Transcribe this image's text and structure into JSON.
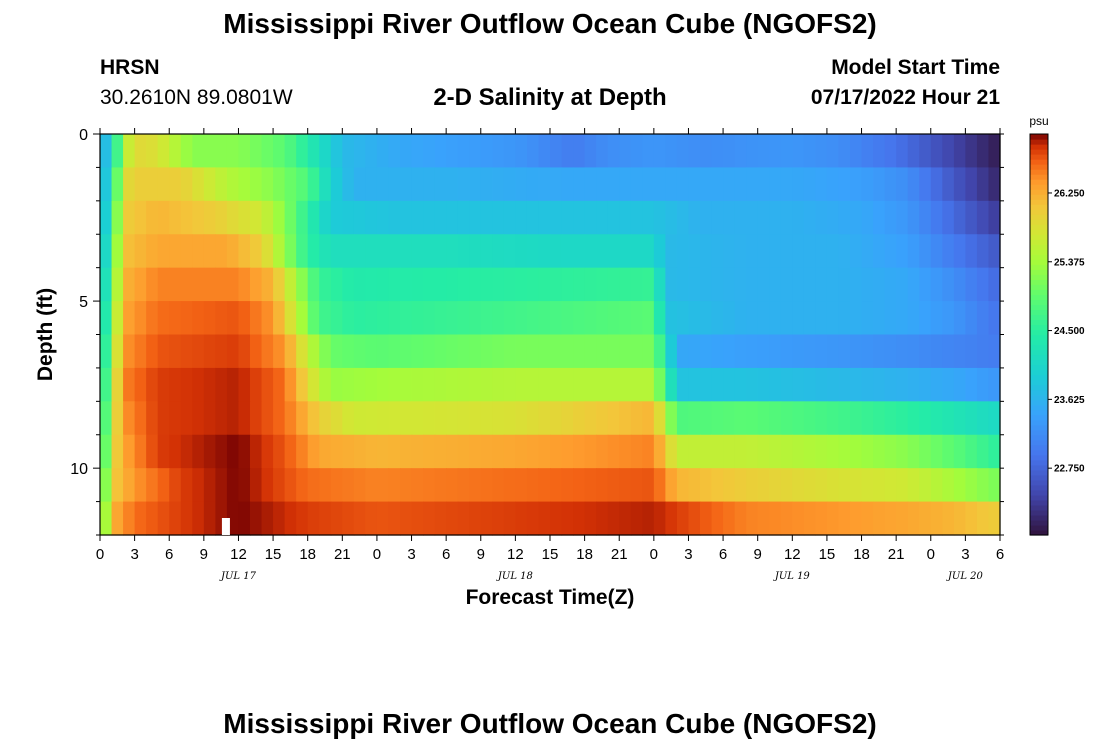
{
  "header": {
    "title": "Mississippi River Outflow Ocean Cube (NGOFS2)",
    "station": "HRSN",
    "coords": "30.2610N  89.0801W",
    "subtitle": "2-D Salinity at Depth",
    "model_start_label": "Model Start Time",
    "model_start_value": "07/17/2022 Hour 21"
  },
  "footer": {
    "title": "Mississippi River Outflow Ocean Cube (NGOFS2)"
  },
  "chart_data": {
    "type": "heatmap",
    "title": "2-D Salinity at Depth",
    "xlabel": "Forecast Time(Z)",
    "ylabel": "Depth (ft)",
    "x_range_hours": [
      0,
      78
    ],
    "y_range_ft": [
      0,
      12
    ],
    "x_tick_labels": [
      "0",
      "3",
      "6",
      "9",
      "12",
      "15",
      "18",
      "21",
      "0",
      "3",
      "6",
      "9",
      "12",
      "15",
      "18",
      "21",
      "0",
      "3",
      "6",
      "9",
      "12",
      "15",
      "18",
      "21",
      "0",
      "3",
      "6"
    ],
    "y_tick_labels": [
      "0",
      "5",
      "10"
    ],
    "y_tick_values": [
      0,
      5,
      10
    ],
    "date_labels": [
      {
        "label": "JUL 17",
        "hour": 12
      },
      {
        "label": "JUL 18",
        "hour": 36
      },
      {
        "label": "JUL 19",
        "hour": 60
      },
      {
        "label": "JUL 20",
        "hour": 75
      }
    ],
    "current_time_marker_hour": 11,
    "colorbar": {
      "unit": "psu",
      "min": 21.9,
      "max": 27.0,
      "ticks": [
        "26.250",
        "25.375",
        "24.500",
        "23.625",
        "22.750"
      ],
      "tick_values": [
        26.25,
        25.375,
        24.5,
        23.625,
        22.75
      ]
    },
    "layers": 12,
    "layer_depths_ft": [
      0.5,
      1.5,
      2.5,
      3.5,
      4.5,
      5.5,
      6.5,
      7.5,
      8.5,
      9.5,
      10.5,
      11.5
    ],
    "profiles": [
      {
        "depth_ft": 0.5,
        "samples": [
          [
            0,
            23.5
          ],
          [
            1,
            24.0
          ],
          [
            2,
            25.4
          ],
          [
            3,
            25.9
          ],
          [
            5,
            25.8
          ],
          [
            8,
            25.2
          ],
          [
            12,
            25.2
          ],
          [
            16,
            24.9
          ],
          [
            19,
            24.2
          ],
          [
            21,
            23.7
          ],
          [
            26,
            23.5
          ],
          [
            36,
            23.3
          ],
          [
            41,
            23.0
          ],
          [
            44,
            23.2
          ],
          [
            48,
            23.3
          ],
          [
            52,
            23.2
          ],
          [
            60,
            23.3
          ],
          [
            64,
            23.2
          ],
          [
            69,
            22.9
          ],
          [
            74,
            22.4
          ],
          [
            78,
            22.0
          ]
        ]
      },
      {
        "depth_ft": 1.5,
        "samples": [
          [
            0,
            23.5
          ],
          [
            1,
            24.2
          ],
          [
            2,
            25.8
          ],
          [
            3,
            26.0
          ],
          [
            7,
            26.0
          ],
          [
            11,
            25.5
          ],
          [
            15,
            25.2
          ],
          [
            18,
            24.8
          ],
          [
            20,
            24.0
          ],
          [
            22,
            23.6
          ],
          [
            30,
            23.6
          ],
          [
            40,
            23.5
          ],
          [
            48,
            23.5
          ],
          [
            52,
            23.5
          ],
          [
            60,
            23.5
          ],
          [
            66,
            23.4
          ],
          [
            70,
            23.2
          ],
          [
            74,
            22.6
          ],
          [
            78,
            22.1
          ]
        ]
      },
      {
        "depth_ft": 2.5,
        "samples": [
          [
            0,
            23.5
          ],
          [
            1,
            24.4
          ],
          [
            2,
            26.0
          ],
          [
            5,
            26.2
          ],
          [
            10,
            26.0
          ],
          [
            14,
            25.7
          ],
          [
            16,
            25.2
          ],
          [
            18,
            24.5
          ],
          [
            20,
            23.9
          ],
          [
            26,
            23.8
          ],
          [
            40,
            23.8
          ],
          [
            48,
            23.8
          ],
          [
            52,
            23.6
          ],
          [
            60,
            23.6
          ],
          [
            66,
            23.5
          ],
          [
            70,
            23.3
          ],
          [
            74,
            22.8
          ],
          [
            78,
            22.3
          ]
        ]
      },
      {
        "depth_ft": 3.5,
        "samples": [
          [
            0,
            23.6
          ],
          [
            1,
            24.6
          ],
          [
            2,
            26.1
          ],
          [
            5,
            26.3
          ],
          [
            11,
            26.3
          ],
          [
            14,
            26.0
          ],
          [
            16,
            25.3
          ],
          [
            18,
            24.5
          ],
          [
            20,
            24.2
          ],
          [
            30,
            24.2
          ],
          [
            40,
            24.1
          ],
          [
            48,
            24.1
          ],
          [
            49,
            23.7
          ],
          [
            56,
            23.6
          ],
          [
            64,
            23.6
          ],
          [
            70,
            23.4
          ],
          [
            74,
            23.0
          ],
          [
            78,
            22.6
          ]
        ]
      },
      {
        "depth_ft": 4.5,
        "samples": [
          [
            0,
            23.7
          ],
          [
            1,
            24.8
          ],
          [
            2,
            26.2
          ],
          [
            5,
            26.5
          ],
          [
            12,
            26.5
          ],
          [
            15,
            26.2
          ],
          [
            17,
            25.4
          ],
          [
            19,
            24.6
          ],
          [
            22,
            24.4
          ],
          [
            36,
            24.5
          ],
          [
            48,
            24.6
          ],
          [
            49,
            23.7
          ],
          [
            56,
            23.6
          ],
          [
            64,
            23.6
          ],
          [
            70,
            23.5
          ],
          [
            74,
            23.2
          ],
          [
            78,
            22.8
          ]
        ]
      },
      {
        "depth_ft": 5.5,
        "samples": [
          [
            0,
            23.8
          ],
          [
            1,
            25.0
          ],
          [
            2,
            26.3
          ],
          [
            5,
            26.6
          ],
          [
            12,
            26.7
          ],
          [
            15,
            26.4
          ],
          [
            17,
            25.6
          ],
          [
            19,
            24.7
          ],
          [
            22,
            24.5
          ],
          [
            36,
            24.7
          ],
          [
            48,
            24.9
          ],
          [
            49,
            23.8
          ],
          [
            56,
            23.6
          ],
          [
            64,
            23.6
          ],
          [
            70,
            23.5
          ],
          [
            74,
            23.3
          ],
          [
            78,
            22.9
          ]
        ]
      },
      {
        "depth_ft": 6.5,
        "samples": [
          [
            0,
            23.9
          ],
          [
            1,
            25.2
          ],
          [
            2,
            26.4
          ],
          [
            5,
            26.7
          ],
          [
            12,
            26.8
          ],
          [
            16,
            26.4
          ],
          [
            18,
            25.6
          ],
          [
            20,
            25.0
          ],
          [
            24,
            24.9
          ],
          [
            36,
            25.1
          ],
          [
            48,
            25.1
          ],
          [
            50,
            23.5
          ],
          [
            56,
            23.4
          ],
          [
            64,
            23.3
          ],
          [
            70,
            23.2
          ],
          [
            74,
            23.1
          ],
          [
            78,
            23.0
          ]
        ]
      },
      {
        "depth_ft": 7.5,
        "samples": [
          [
            0,
            24.0
          ],
          [
            1,
            25.4
          ],
          [
            2,
            26.5
          ],
          [
            5,
            26.8
          ],
          [
            12,
            26.9
          ],
          [
            16,
            26.6
          ],
          [
            18,
            25.9
          ],
          [
            20,
            25.3
          ],
          [
            26,
            25.4
          ],
          [
            36,
            25.5
          ],
          [
            48,
            25.5
          ],
          [
            50,
            23.8
          ],
          [
            56,
            23.8
          ],
          [
            64,
            23.7
          ],
          [
            70,
            23.6
          ],
          [
            74,
            23.5
          ],
          [
            78,
            23.3
          ]
        ]
      },
      {
        "depth_ft": 8.5,
        "samples": [
          [
            0,
            24.1
          ],
          [
            1,
            25.6
          ],
          [
            2,
            26.4
          ],
          [
            5,
            26.8
          ],
          [
            12,
            26.9
          ],
          [
            16,
            26.6
          ],
          [
            19,
            26.0
          ],
          [
            22,
            25.7
          ],
          [
            36,
            25.8
          ],
          [
            48,
            26.2
          ],
          [
            50,
            24.8
          ],
          [
            56,
            24.9
          ],
          [
            64,
            24.7
          ],
          [
            70,
            24.5
          ],
          [
            74,
            24.3
          ],
          [
            78,
            24.1
          ]
        ]
      },
      {
        "depth_ft": 9.5,
        "samples": [
          [
            0,
            24.2
          ],
          [
            1,
            25.8
          ],
          [
            2,
            26.3
          ],
          [
            5,
            26.8
          ],
          [
            12,
            27.0
          ],
          [
            16,
            26.7
          ],
          [
            19,
            26.3
          ],
          [
            24,
            26.2
          ],
          [
            36,
            26.3
          ],
          [
            48,
            26.5
          ],
          [
            50,
            25.6
          ],
          [
            56,
            25.6
          ],
          [
            64,
            25.4
          ],
          [
            70,
            25.2
          ],
          [
            74,
            24.9
          ],
          [
            78,
            24.5
          ]
        ]
      },
      {
        "depth_ft": 10.5,
        "samples": [
          [
            0,
            24.4
          ],
          [
            1,
            26.0
          ],
          [
            3,
            26.4
          ],
          [
            7,
            26.8
          ],
          [
            12,
            27.0
          ],
          [
            18,
            26.6
          ],
          [
            24,
            26.5
          ],
          [
            36,
            26.6
          ],
          [
            48,
            26.7
          ],
          [
            50,
            26.2
          ],
          [
            56,
            26.0
          ],
          [
            64,
            25.8
          ],
          [
            70,
            25.7
          ],
          [
            74,
            25.4
          ],
          [
            78,
            25.1
          ]
        ]
      },
      {
        "depth_ft": 11.5,
        "samples": [
          [
            0,
            24.6
          ],
          [
            1,
            26.2
          ],
          [
            3,
            26.6
          ],
          [
            7,
            26.8
          ],
          [
            12,
            27.0
          ],
          [
            18,
            26.8
          ],
          [
            24,
            26.7
          ],
          [
            36,
            26.8
          ],
          [
            48,
            26.9
          ],
          [
            52,
            26.7
          ],
          [
            56,
            26.5
          ],
          [
            64,
            26.4
          ],
          [
            70,
            26.3
          ],
          [
            74,
            26.2
          ],
          [
            78,
            26.0
          ]
        ]
      }
    ]
  }
}
